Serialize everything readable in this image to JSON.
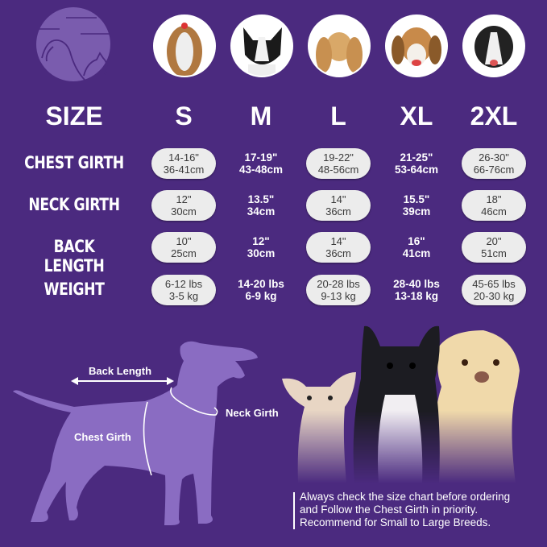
{
  "colors": {
    "background": "#4b2a7f",
    "silhouette": "#8a6cc2",
    "logo": "#7a5cae",
    "pill": "#ececec"
  },
  "logo": {
    "icon": "pet-dog-cat-icon"
  },
  "photos": [
    {
      "size": "S",
      "icon": "shih-tzu-photo"
    },
    {
      "size": "M",
      "icon": "boston-terrier-photo"
    },
    {
      "size": "L",
      "icon": "cocker-spaniel-photo"
    },
    {
      "size": "XL",
      "icon": "beagle-photo"
    },
    {
      "size": "2XL",
      "icon": "border-collie-photo"
    }
  ],
  "table": {
    "header": "SIZE",
    "sizes": [
      "S",
      "M",
      "L",
      "XL",
      "2XL"
    ],
    "rows": [
      {
        "label": "CHEST GIRTH",
        "values": [
          [
            "14-16\"",
            "36-41cm"
          ],
          [
            "17-19\"",
            "43-48cm"
          ],
          [
            "19-22\"",
            "48-56cm"
          ],
          [
            "21-25\"",
            "53-64cm"
          ],
          [
            "26-30\"",
            "66-76cm"
          ]
        ]
      },
      {
        "label": "NECK GIRTH",
        "values": [
          [
            "12\"",
            "30cm"
          ],
          [
            "13.5\"",
            "34cm"
          ],
          [
            "14\"",
            "36cm"
          ],
          [
            "15.5\"",
            "39cm"
          ],
          [
            "18\"",
            "46cm"
          ]
        ]
      },
      {
        "label": "BACK LENGTH",
        "values": [
          [
            "10\"",
            "25cm"
          ],
          [
            "12\"",
            "30cm"
          ],
          [
            "14\"",
            "36cm"
          ],
          [
            "16\"",
            "41cm"
          ],
          [
            "20\"",
            "51cm"
          ]
        ]
      },
      {
        "label": "WEIGHT",
        "values": [
          [
            "6-12 lbs",
            "3-5 kg"
          ],
          [
            "14-20 lbs",
            "6-9 kg"
          ],
          [
            "20-28 lbs",
            "9-13 kg"
          ],
          [
            "28-40 lbs",
            "13-18 kg"
          ],
          [
            "45-65 lbs",
            "20-30 kg"
          ]
        ]
      }
    ]
  },
  "diagram": {
    "back_length": "Back Length",
    "neck_girth": "Neck Girth",
    "chest_girth": "Chest Girth"
  },
  "note": [
    "Always check the size chart before ordering",
    "and Follow the Chest Girth in priority.",
    "Recommend for Small to Large Breeds."
  ]
}
